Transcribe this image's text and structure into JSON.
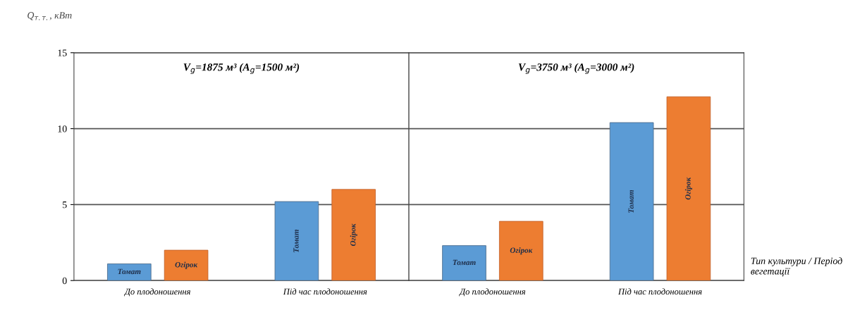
{
  "chart_data": [
    {
      "type": "bar",
      "title": "V$_{g}$=1875 м³ (A$_{g}$=1500 м²)",
      "ylabel": "Q$_{т.т.}$, кВт",
      "categories": [
        "До плодоношення",
        "Під час плодоношення"
      ],
      "series": [
        {
          "name": "Томат",
          "color": "#5b9bd5",
          "values": [
            1.1,
            5.2
          ]
        },
        {
          "name": "Огірок",
          "color": "#ed7d31",
          "values": [
            2.0,
            6.0
          ]
        }
      ],
      "ylim": [
        0,
        15
      ],
      "yticks": [
        0,
        5,
        10,
        15
      ],
      "grid": "y",
      "legend": false
    },
    {
      "type": "bar",
      "title": "V$_{g}$=3750 м³ (A$_{g}$=3000 м²)",
      "xlabel": "Тип культури / Період вегетації",
      "categories": [
        "До плодоношення",
        "Під час плодоношення"
      ],
      "series": [
        {
          "name": "Томат",
          "color": "#5b9bd5",
          "values": [
            2.3,
            10.4
          ]
        },
        {
          "name": "Огірок",
          "color": "#ed7d31",
          "values": [
            3.9,
            12.1
          ]
        }
      ],
      "ylim": [
        0,
        15
      ],
      "yticks": [
        0,
        5,
        10,
        15
      ],
      "grid": "y",
      "legend": false,
      "tick_labels": "x"
    }
  ]
}
